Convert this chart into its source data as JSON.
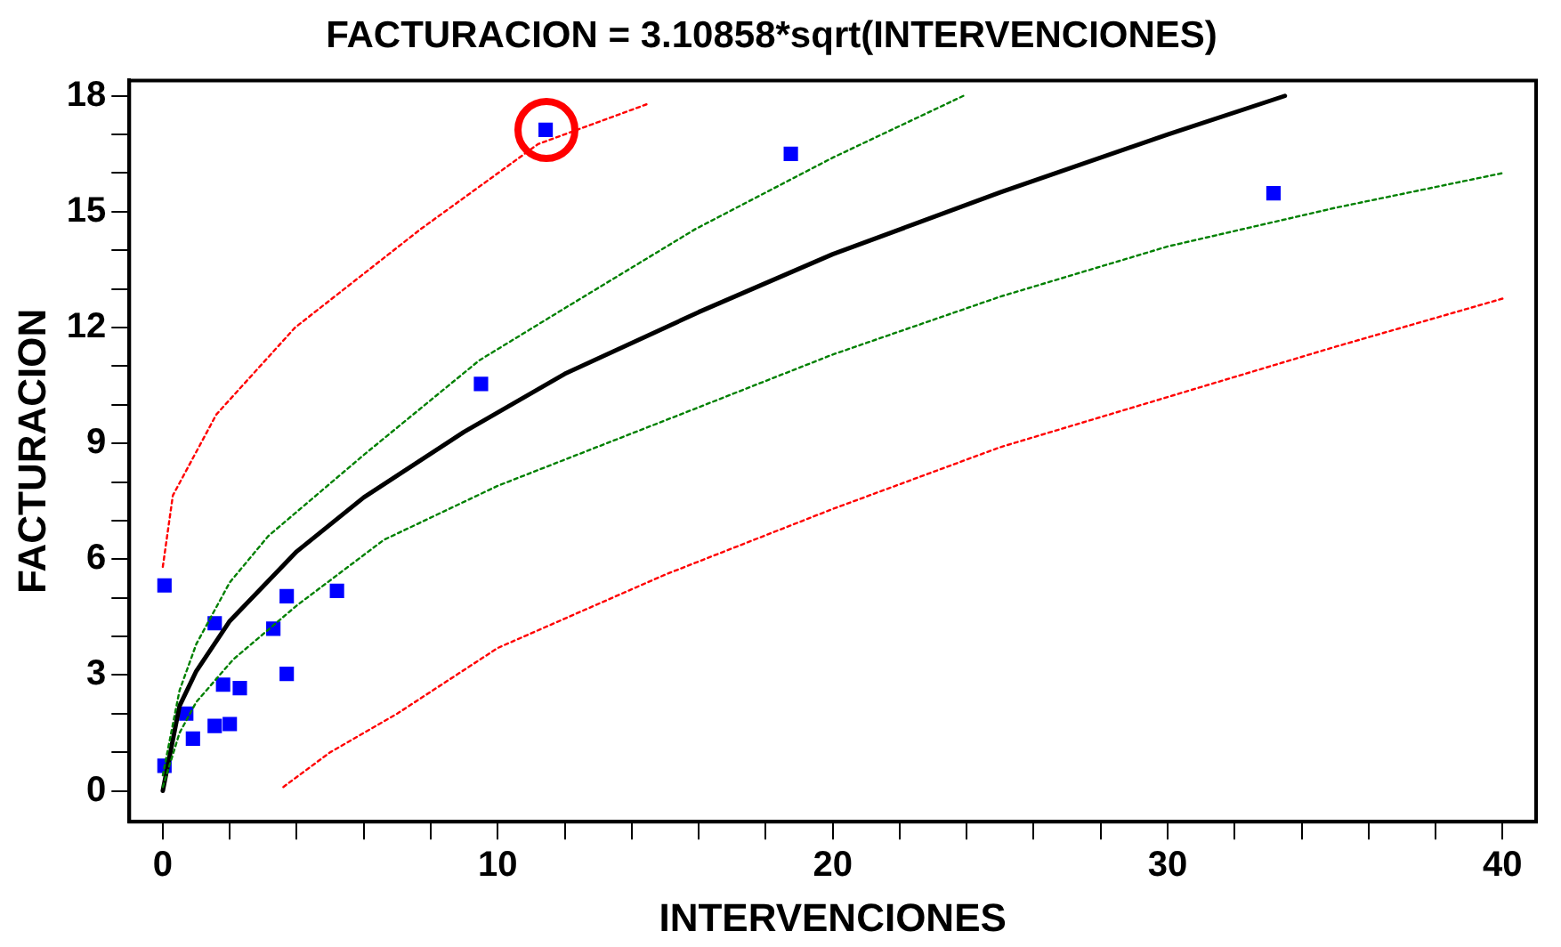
{
  "chart_data": {
    "type": "scatter",
    "title": "FACTURACION = 3.10858*sqrt(INTERVENCIONES)",
    "xlabel": "INTERVENCIONES",
    "ylabel": "FACTURACION",
    "xlim": [
      -1,
      41
    ],
    "ylim": [
      -0.8,
      18.4
    ],
    "xticks": [
      0,
      {
        "value": 2,
        "label": null
      },
      {
        "value": 4,
        "label": null
      },
      {
        "value": 6,
        "label": null
      },
      {
        "value": 8,
        "label": null
      },
      10,
      {
        "value": 12,
        "label": null
      },
      {
        "value": 14,
        "label": null
      },
      {
        "value": 16,
        "label": null
      },
      {
        "value": 18,
        "label": null
      },
      20,
      {
        "value": 22,
        "label": null
      },
      {
        "value": 24,
        "label": null
      },
      {
        "value": 26,
        "label": null
      },
      {
        "value": 28,
        "label": null
      },
      30,
      {
        "value": 32,
        "label": null
      },
      {
        "value": 34,
        "label": null
      },
      {
        "value": 36,
        "label": null
      },
      {
        "value": 38,
        "label": null
      },
      40
    ],
    "yticks": [
      0,
      {
        "value": 1,
        "label": null
      },
      {
        "value": 2,
        "label": null
      },
      3,
      {
        "value": 4,
        "label": null
      },
      {
        "value": 5,
        "label": null
      },
      6,
      {
        "value": 7,
        "label": null
      },
      {
        "value": 8,
        "label": null
      },
      9,
      {
        "value": 10,
        "label": null
      },
      {
        "value": 11,
        "label": null
      },
      12,
      {
        "value": 13,
        "label": null
      },
      {
        "value": 14,
        "label": null
      },
      15,
      {
        "value": 16,
        "label": null
      },
      {
        "value": 17,
        "label": null
      },
      18
    ],
    "grid": false,
    "legend": false,
    "series": [
      {
        "type": "line",
        "color": "#ff0000",
        "marker": "none",
        "line_style": "dotted",
        "x": [
          0,
          0.3,
          1.6,
          3.95,
          7.7,
          11.2,
          14.5
        ],
        "values": [
          5.8,
          7.65,
          9.75,
          12.0,
          14.55,
          16.75,
          17.8
        ]
      },
      {
        "type": "line",
        "color": "#ff0000",
        "marker": "none",
        "line_style": "dotted",
        "x": [
          3.6,
          5,
          7,
          10,
          15,
          20,
          25,
          30,
          35,
          40
        ],
        "values": [
          0.1,
          1.0,
          2.0,
          3.7,
          5.6,
          7.3,
          8.9,
          10.2,
          11.5,
          12.75
        ]
      },
      {
        "type": "line",
        "color": "#008000",
        "marker": "none",
        "line_style": "dotted",
        "x": [
          0,
          0.5,
          1,
          2,
          3.15,
          6,
          9.45,
          12,
          15.9,
          20,
          23.9
        ],
        "values": [
          0.4,
          2.6,
          3.8,
          5.4,
          6.6,
          8.7,
          11.15,
          12.5,
          14.55,
          16.4,
          18.0
        ]
      },
      {
        "type": "line",
        "color": "#008000",
        "marker": "none",
        "line_style": "dotted",
        "x": [
          0,
          0.5,
          1,
          2.1,
          4,
          6.6,
          10,
          15.9,
          20,
          25,
          30,
          35,
          40
        ],
        "values": [
          0.1,
          1.5,
          2.3,
          3.4,
          4.8,
          6.5,
          7.9,
          9.9,
          11.3,
          12.8,
          14.1,
          15.1,
          16.0
        ]
      },
      {
        "type": "line",
        "color": "#000000",
        "marker": "none",
        "line_style": "solid",
        "x": [
          0,
          0.5,
          1,
          2,
          4,
          6,
          9,
          12,
          16,
          20,
          25,
          30,
          33.5
        ],
        "values": [
          0,
          2.2,
          3.1,
          4.4,
          6.2,
          7.6,
          9.3,
          10.8,
          12.4,
          13.9,
          15.5,
          17.0,
          18.0
        ]
      },
      {
        "type": "scatter",
        "color": "#0000ff",
        "marker": "square",
        "x": [
          0.05,
          0.05,
          0.7,
          0.9,
          1.55,
          1.55,
          1.8,
          2.0,
          2.3,
          3.3,
          3.7,
          3.7,
          5.2,
          9.5,
          11.43,
          18.75,
          33.16
        ],
        "values": [
          5.32,
          0.65,
          2.0,
          1.35,
          4.34,
          1.68,
          2.75,
          1.73,
          2.66,
          4.2,
          5.04,
          3.03,
          5.18,
          10.54,
          17.12,
          16.5,
          15.48
        ]
      }
    ]
  }
}
